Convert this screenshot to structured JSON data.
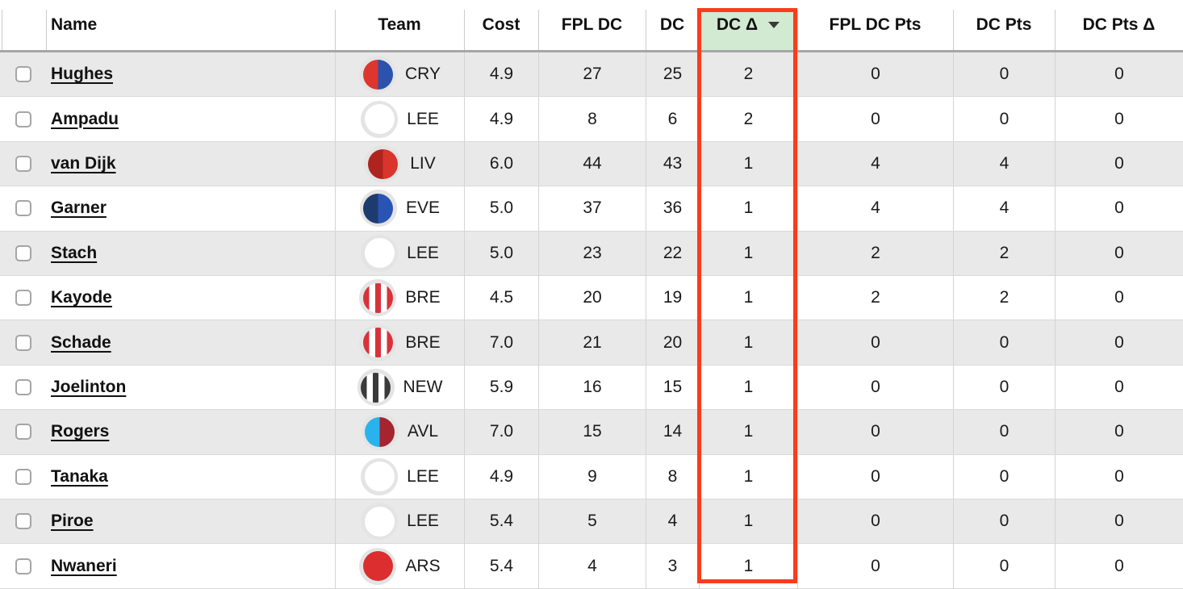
{
  "table": {
    "columns": [
      {
        "key": "select",
        "label": ""
      },
      {
        "key": "name",
        "label": "Name"
      },
      {
        "key": "team",
        "label": "Team"
      },
      {
        "key": "cost",
        "label": "Cost"
      },
      {
        "key": "fpl_dc",
        "label": "FPL DC"
      },
      {
        "key": "dc",
        "label": "DC"
      },
      {
        "key": "dc_delta",
        "label": "DC Δ",
        "sorted": "desc",
        "highlighted": true
      },
      {
        "key": "fpl_dc_pts",
        "label": "FPL DC Pts"
      },
      {
        "key": "dc_pts",
        "label": "DC Pts"
      },
      {
        "key": "dc_pts_delta",
        "label": "DC Pts Δ"
      }
    ],
    "rows": [
      {
        "name": "Hughes",
        "team": "CRY",
        "cost": "4.9",
        "fpl_dc": "27",
        "dc": "25",
        "dc_delta": "2",
        "fpl_dc_pts": "0",
        "dc_pts": "0",
        "dc_pts_delta": "0"
      },
      {
        "name": "Ampadu",
        "team": "LEE",
        "cost": "4.9",
        "fpl_dc": "8",
        "dc": "6",
        "dc_delta": "2",
        "fpl_dc_pts": "0",
        "dc_pts": "0",
        "dc_pts_delta": "0"
      },
      {
        "name": "van Dijk",
        "team": "LIV",
        "cost": "6.0",
        "fpl_dc": "44",
        "dc": "43",
        "dc_delta": "1",
        "fpl_dc_pts": "4",
        "dc_pts": "4",
        "dc_pts_delta": "0"
      },
      {
        "name": "Garner",
        "team": "EVE",
        "cost": "5.0",
        "fpl_dc": "37",
        "dc": "36",
        "dc_delta": "1",
        "fpl_dc_pts": "4",
        "dc_pts": "4",
        "dc_pts_delta": "0"
      },
      {
        "name": "Stach",
        "team": "LEE",
        "cost": "5.0",
        "fpl_dc": "23",
        "dc": "22",
        "dc_delta": "1",
        "fpl_dc_pts": "2",
        "dc_pts": "2",
        "dc_pts_delta": "0"
      },
      {
        "name": "Kayode",
        "team": "BRE",
        "cost": "4.5",
        "fpl_dc": "20",
        "dc": "19",
        "dc_delta": "1",
        "fpl_dc_pts": "2",
        "dc_pts": "2",
        "dc_pts_delta": "0"
      },
      {
        "name": "Schade",
        "team": "BRE",
        "cost": "7.0",
        "fpl_dc": "21",
        "dc": "20",
        "dc_delta": "1",
        "fpl_dc_pts": "0",
        "dc_pts": "0",
        "dc_pts_delta": "0"
      },
      {
        "name": "Joelinton",
        "team": "NEW",
        "cost": "5.9",
        "fpl_dc": "16",
        "dc": "15",
        "dc_delta": "1",
        "fpl_dc_pts": "0",
        "dc_pts": "0",
        "dc_pts_delta": "0"
      },
      {
        "name": "Rogers",
        "team": "AVL",
        "cost": "7.0",
        "fpl_dc": "15",
        "dc": "14",
        "dc_delta": "1",
        "fpl_dc_pts": "0",
        "dc_pts": "0",
        "dc_pts_delta": "0"
      },
      {
        "name": "Tanaka",
        "team": "LEE",
        "cost": "4.9",
        "fpl_dc": "9",
        "dc": "8",
        "dc_delta": "1",
        "fpl_dc_pts": "0",
        "dc_pts": "0",
        "dc_pts_delta": "0"
      },
      {
        "name": "Piroe",
        "team": "LEE",
        "cost": "5.4",
        "fpl_dc": "5",
        "dc": "4",
        "dc_delta": "1",
        "fpl_dc_pts": "0",
        "dc_pts": "0",
        "dc_pts_delta": "0"
      },
      {
        "name": "Nwaneri",
        "team": "ARS",
        "cost": "5.4",
        "fpl_dc": "4",
        "dc": "3",
        "dc_delta": "1",
        "fpl_dc_pts": "0",
        "dc_pts": "0",
        "dc_pts_delta": "0"
      }
    ]
  },
  "teams": {
    "CRY": {
      "type": "half",
      "colors": [
        "#dc362f",
        "#2b52ad"
      ]
    },
    "LEE": {
      "type": "solid",
      "colors": [
        "#ffffff"
      ]
    },
    "LIV": {
      "type": "half",
      "colors": [
        "#b0241f",
        "#d8352c"
      ]
    },
    "EVE": {
      "type": "half",
      "colors": [
        "#1d3b6e",
        "#2a54b4"
      ]
    },
    "BRE": {
      "type": "stripes",
      "colors": [
        "#d8323a",
        "#ffffff"
      ]
    },
    "NEW": {
      "type": "stripes",
      "colors": [
        "#3a3a3a",
        "#ffffff"
      ]
    },
    "AVL": {
      "type": "half",
      "colors": [
        "#29b3ee",
        "#a5242f"
      ]
    },
    "ARS": {
      "type": "solid",
      "colors": [
        "#dc2e2e"
      ]
    }
  },
  "colors": {
    "highlight_border": "#f93c1d",
    "sorted_header_bg": "#d2ead2",
    "row_stripe": "#e9e9e9",
    "header_rule": "#a6a6a6",
    "grid_line": "#d4d4d4"
  }
}
